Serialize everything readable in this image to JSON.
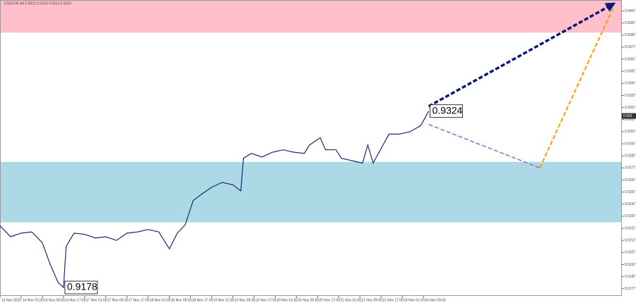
{
  "chart_data": {
    "type": "line",
    "title": "USDCHF,H4 0.9322 0.9324 0.9313 0.9320",
    "series": [
      {
        "name": "USDCHF",
        "color": "#1a2a6c",
        "x": [
          0,
          4,
          8,
          12,
          16,
          19,
          22,
          24,
          25,
          28,
          32,
          36,
          40,
          44,
          48,
          52,
          56,
          60,
          64,
          67,
          70,
          73,
          76,
          80,
          84,
          88,
          91,
          92,
          95,
          99,
          103,
          107,
          111,
          115,
          117,
          121,
          123,
          127,
          129,
          133,
          137,
          139,
          141,
          144,
          147,
          151,
          155,
          159,
          162
        ],
        "values": [
          0.9229,
          0.922,
          0.9223,
          0.9224,
          0.9215,
          0.9197,
          0.9182,
          0.9178,
          0.9212,
          0.9223,
          0.9222,
          0.9219,
          0.922,
          0.9217,
          0.9223,
          0.9224,
          0.9226,
          0.9224,
          0.921,
          0.9223,
          0.923,
          0.925,
          0.9255,
          0.9261,
          0.9265,
          0.9263,
          0.9258,
          0.9285,
          0.9289,
          0.9286,
          0.929,
          0.9292,
          0.929,
          0.9289,
          0.9296,
          0.9302,
          0.9292,
          0.9292,
          0.9285,
          0.9283,
          0.9281,
          0.9296,
          0.9281,
          0.9293,
          0.9305,
          0.9305,
          0.9307,
          0.9312,
          0.9324
        ]
      }
    ],
    "xlim": [
      0,
      235
    ],
    "xticks": [
      {
        "value": 0,
        "label": "13 Nov 2020"
      },
      {
        "value": 8,
        "label": "14 Nov 01:00"
      },
      {
        "value": 16,
        "label": "14 Nov 09:00"
      },
      {
        "value": 24,
        "label": "14 Nov 17:00"
      },
      {
        "value": 32,
        "label": "17 Nov 01:00"
      },
      {
        "value": 40,
        "label": "17 Nov 09:00"
      },
      {
        "value": 48,
        "label": "17 Nov 17:00"
      },
      {
        "value": 56,
        "label": "18 Nov 01:00"
      },
      {
        "value": 64,
        "label": "18 Nov 09:00"
      },
      {
        "value": 72,
        "label": "18 Nov 17:00"
      },
      {
        "value": 80,
        "label": "19 Nov 01:00"
      },
      {
        "value": 88,
        "label": "19 Nov 09:00"
      },
      {
        "value": 96,
        "label": "19 Nov 17:00"
      },
      {
        "value": 104,
        "label": "20 Nov 01:00"
      },
      {
        "value": 112,
        "label": "20 Nov 09:00"
      },
      {
        "value": 120,
        "label": "20 Nov 17:00"
      },
      {
        "value": 128,
        "label": "21 Nov 01:00"
      },
      {
        "value": 136,
        "label": "21 Nov 09:00"
      },
      {
        "value": 144,
        "label": "21 Nov 17:00"
      },
      {
        "value": 152,
        "label": "24 Nov 01:00"
      },
      {
        "value": 160,
        "label": "24 Nov 09:00"
      }
    ],
    "ylim": [
      0.9171,
      0.9416
    ],
    "yticks": [
      0.9177,
      0.9187,
      0.9197,
      0.9207,
      0.9217,
      0.9227,
      0.9237,
      0.9247,
      0.9257,
      0.9267,
      0.9277,
      0.9287,
      0.9297,
      0.9307,
      0.9317,
      0.9327,
      0.9337,
      0.9347,
      0.9357,
      0.9367,
      0.9377,
      0.9387,
      0.9397,
      0.9407
    ],
    "current_price": 0.932,
    "zones": [
      {
        "from": 0.9389,
        "to": 0.9416,
        "color": "#ffc0cb"
      },
      {
        "from": 0.9232,
        "to": 0.9282,
        "color": "#add8e6"
      }
    ],
    "arrows": [
      {
        "x": [
          162,
          232
        ],
        "values": [
          0.9328,
          0.9413
        ],
        "color": "#0b1a7a",
        "width": 3.5
      },
      {
        "x": [
          162,
          204
        ],
        "values": [
          0.9313,
          0.9277
        ],
        "color": "#9966cc",
        "width": 1.5
      },
      {
        "x": [
          204,
          232
        ],
        "values": [
          0.9277,
          0.9411
        ],
        "color": "#ff9900",
        "width": 2
      }
    ],
    "annotations": [
      {
        "text": "0.9324",
        "x": 162,
        "value": 0.9324
      },
      {
        "text": "0.9178",
        "x": 24,
        "value": 0.9178
      }
    ]
  }
}
